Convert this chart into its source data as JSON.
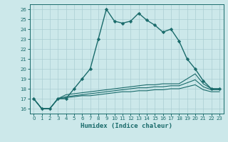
{
  "xlabel": "Humidex (Indice chaleur)",
  "ylabel": "",
  "bg_color": "#cce8ea",
  "grid_color": "#aacdd2",
  "line_color": "#1a6b6b",
  "xlim": [
    -0.5,
    23.5
  ],
  "ylim": [
    15.5,
    26.5
  ],
  "xticks": [
    0,
    1,
    2,
    3,
    4,
    5,
    6,
    7,
    8,
    9,
    10,
    11,
    12,
    13,
    14,
    15,
    16,
    17,
    18,
    19,
    20,
    21,
    22,
    23
  ],
  "yticks": [
    16,
    17,
    18,
    19,
    20,
    21,
    22,
    23,
    24,
    25,
    26
  ],
  "line1": [
    17,
    16,
    16,
    17,
    17,
    18,
    19,
    20,
    23,
    26,
    24.8,
    24.6,
    24.8,
    25.6,
    24.9,
    24.4,
    23.7,
    24.0,
    22.8,
    21.0,
    20.0,
    18.8,
    18.0,
    18.0
  ],
  "line2": [
    17,
    16,
    16,
    17,
    17.4,
    17.5,
    17.6,
    17.7,
    17.8,
    17.9,
    18.0,
    18.1,
    18.2,
    18.3,
    18.4,
    18.4,
    18.5,
    18.5,
    18.5,
    19.0,
    19.5,
    18.5,
    18.0,
    18.0
  ],
  "line3": [
    17,
    16,
    16,
    17,
    17.2,
    17.3,
    17.4,
    17.5,
    17.6,
    17.7,
    17.8,
    17.9,
    18.0,
    18.1,
    18.1,
    18.2,
    18.2,
    18.3,
    18.3,
    18.6,
    18.9,
    18.2,
    17.9,
    17.9
  ],
  "line4": [
    17,
    16,
    16,
    17,
    17.1,
    17.2,
    17.3,
    17.3,
    17.4,
    17.5,
    17.6,
    17.7,
    17.7,
    17.8,
    17.8,
    17.9,
    17.9,
    18.0,
    18.0,
    18.2,
    18.4,
    17.9,
    17.7,
    17.7
  ]
}
